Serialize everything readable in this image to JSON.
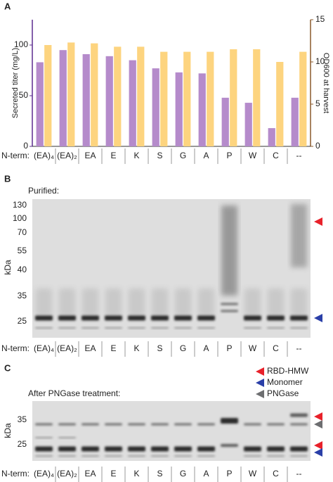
{
  "chart_data": {
    "type": "bar",
    "panel": "A",
    "category_prefix": "N-term:",
    "categories": [
      "(EA)₄",
      "(EA)₂",
      "EA",
      "E",
      "K",
      "S",
      "G",
      "A",
      "P",
      "W",
      "C",
      "--"
    ],
    "series": [
      {
        "color": "#b58bcb",
        "values": [
          83,
          95,
          91,
          89,
          85,
          77,
          73,
          72,
          48,
          43,
          18,
          48
        ]
      },
      {
        "color": "#fdd47f",
        "axis": "y2",
        "values": [
          12,
          12.3,
          12.2,
          11.8,
          11.8,
          11.2,
          11.2,
          11.2,
          11.5,
          11.5,
          10,
          11.2
        ]
      }
    ],
    "ylabel": "Secreted titer (mg/L)",
    "y2label": "OD600 at harvest",
    "ylim": [
      0,
      125
    ],
    "yticks": [
      0,
      50,
      100
    ],
    "y2lim": [
      0,
      15
    ],
    "y2ticks": [
      0,
      5,
      10,
      15
    ],
    "ycolor": "#5b2c8f",
    "y2color": "#8b5a2b"
  },
  "gels": [
    {
      "panel": "B",
      "caption": "Purified:",
      "axis_label": "kDa",
      "ticks": [
        "130",
        "100",
        "70",
        "55",
        "40",
        "35",
        "25"
      ]
    },
    {
      "panel": "C",
      "caption": "After PNGase treatment:",
      "axis_label": "kDa",
      "ticks": [
        "35",
        "25"
      ]
    }
  ],
  "legend": [
    {
      "name": "RBD-HMW",
      "color": "#e8212a"
    },
    {
      "name": "Monomer",
      "color": "#2a3fa8"
    },
    {
      "name": "PNGase",
      "color": "#6d6e70"
    }
  ]
}
